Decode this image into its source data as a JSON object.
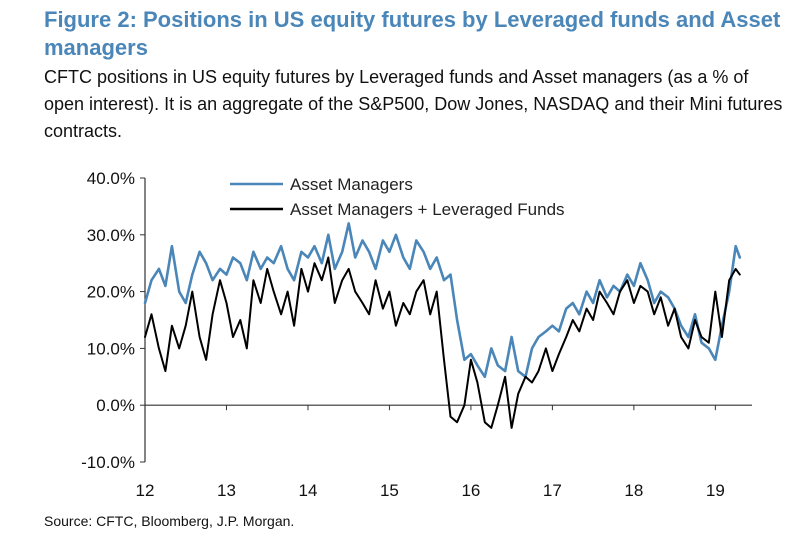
{
  "header": {
    "title": "Figure 2: Positions in US equity futures by Leveraged funds and Asset managers",
    "subtitle": "CFTC positions in US equity futures by Leveraged funds and Asset managers (as a % of open interest). It is an aggregate of the S&P500, Dow Jones, NASDAQ and their Mini futures contracts."
  },
  "footer": {
    "source": "Source: CFTC, Bloomberg, J.P. Morgan."
  },
  "chart_data": {
    "type": "line",
    "title": "",
    "xlabel": "",
    "ylabel": "",
    "xlim": [
      2012.0,
      2019.45
    ],
    "ylim": [
      -10,
      40
    ],
    "x_ticks": [
      2012,
      2013,
      2014,
      2015,
      2016,
      2017,
      2018,
      2019
    ],
    "x_tick_labels": [
      "12",
      "13",
      "14",
      "15",
      "16",
      "17",
      "18",
      "19"
    ],
    "y_ticks": [
      -10,
      0,
      10,
      20,
      30,
      40
    ],
    "y_tick_labels": [
      "-10.0%",
      "0.0%",
      "10.0%",
      "20.0%",
      "30.0%",
      "40.0%"
    ],
    "grid": false,
    "legend_position": "top",
    "series": [
      {
        "name": "Asset Managers",
        "color": "#4a86b8",
        "x": [
          2012.0,
          2012.08,
          2012.17,
          2012.25,
          2012.33,
          2012.42,
          2012.5,
          2012.58,
          2012.67,
          2012.75,
          2012.83,
          2012.92,
          2013.0,
          2013.08,
          2013.17,
          2013.25,
          2013.33,
          2013.42,
          2013.5,
          2013.58,
          2013.67,
          2013.75,
          2013.83,
          2013.92,
          2014.0,
          2014.08,
          2014.17,
          2014.25,
          2014.33,
          2014.42,
          2014.5,
          2014.58,
          2014.67,
          2014.75,
          2014.83,
          2014.92,
          2015.0,
          2015.08,
          2015.17,
          2015.25,
          2015.33,
          2015.42,
          2015.5,
          2015.58,
          2015.67,
          2015.75,
          2015.83,
          2015.92,
          2016.0,
          2016.08,
          2016.17,
          2016.25,
          2016.33,
          2016.42,
          2016.5,
          2016.58,
          2016.67,
          2016.75,
          2016.83,
          2016.92,
          2017.0,
          2017.08,
          2017.17,
          2017.25,
          2017.33,
          2017.42,
          2017.5,
          2017.58,
          2017.67,
          2017.75,
          2017.83,
          2017.92,
          2018.0,
          2018.08,
          2018.17,
          2018.25,
          2018.33,
          2018.42,
          2018.5,
          2018.58,
          2018.67,
          2018.75,
          2018.83,
          2018.92,
          2019.0,
          2019.08,
          2019.17,
          2019.25,
          2019.3
        ],
        "values": [
          18,
          22,
          24,
          21,
          28,
          20,
          18,
          23,
          27,
          25,
          22,
          24,
          23,
          26,
          25,
          22,
          27,
          24,
          26,
          25,
          28,
          24,
          22,
          27,
          26,
          28,
          25,
          30,
          24,
          27,
          32,
          26,
          29,
          27,
          24,
          29,
          27,
          30,
          26,
          24,
          29,
          27,
          24,
          26,
          22,
          23,
          15,
          8,
          9,
          7,
          5,
          10,
          7,
          6,
          12,
          6,
          5,
          10,
          12,
          13,
          14,
          13,
          17,
          18,
          16,
          20,
          18,
          22,
          19,
          21,
          20,
          23,
          21,
          25,
          22,
          18,
          20,
          19,
          17,
          14,
          12,
          16,
          11,
          10,
          8,
          14,
          20,
          28,
          26
        ]
      },
      {
        "name": "Asset Managers + Leveraged Funds",
        "color": "#000000",
        "x": [
          2012.0,
          2012.08,
          2012.17,
          2012.25,
          2012.33,
          2012.42,
          2012.5,
          2012.58,
          2012.67,
          2012.75,
          2012.83,
          2012.92,
          2013.0,
          2013.08,
          2013.17,
          2013.25,
          2013.33,
          2013.42,
          2013.5,
          2013.58,
          2013.67,
          2013.75,
          2013.83,
          2013.92,
          2014.0,
          2014.08,
          2014.17,
          2014.25,
          2014.33,
          2014.42,
          2014.5,
          2014.58,
          2014.67,
          2014.75,
          2014.83,
          2014.92,
          2015.0,
          2015.08,
          2015.17,
          2015.25,
          2015.33,
          2015.42,
          2015.5,
          2015.58,
          2015.67,
          2015.75,
          2015.83,
          2015.92,
          2016.0,
          2016.08,
          2016.17,
          2016.25,
          2016.33,
          2016.42,
          2016.5,
          2016.58,
          2016.67,
          2016.75,
          2016.83,
          2016.92,
          2017.0,
          2017.08,
          2017.17,
          2017.25,
          2017.33,
          2017.42,
          2017.5,
          2017.58,
          2017.67,
          2017.75,
          2017.83,
          2017.92,
          2018.0,
          2018.08,
          2018.17,
          2018.25,
          2018.33,
          2018.42,
          2018.5,
          2018.58,
          2018.67,
          2018.75,
          2018.83,
          2018.92,
          2019.0,
          2019.08,
          2019.17,
          2019.25,
          2019.3
        ],
        "values": [
          12,
          16,
          10,
          6,
          14,
          10,
          14,
          20,
          12,
          8,
          16,
          22,
          18,
          12,
          15,
          10,
          22,
          18,
          24,
          20,
          16,
          20,
          14,
          24,
          20,
          25,
          22,
          26,
          18,
          22,
          24,
          20,
          18,
          16,
          22,
          17,
          20,
          14,
          18,
          16,
          20,
          22,
          16,
          20,
          8,
          -2,
          -3,
          0,
          8,
          4,
          -3,
          -4,
          0,
          5,
          -4,
          2,
          5,
          4,
          6,
          10,
          6,
          9,
          12,
          15,
          13,
          17,
          15,
          20,
          18,
          16,
          20,
          22,
          18,
          21,
          20,
          16,
          19,
          14,
          17,
          12,
          10,
          15,
          12,
          11,
          20,
          12,
          22,
          24,
          23
        ]
      }
    ]
  }
}
